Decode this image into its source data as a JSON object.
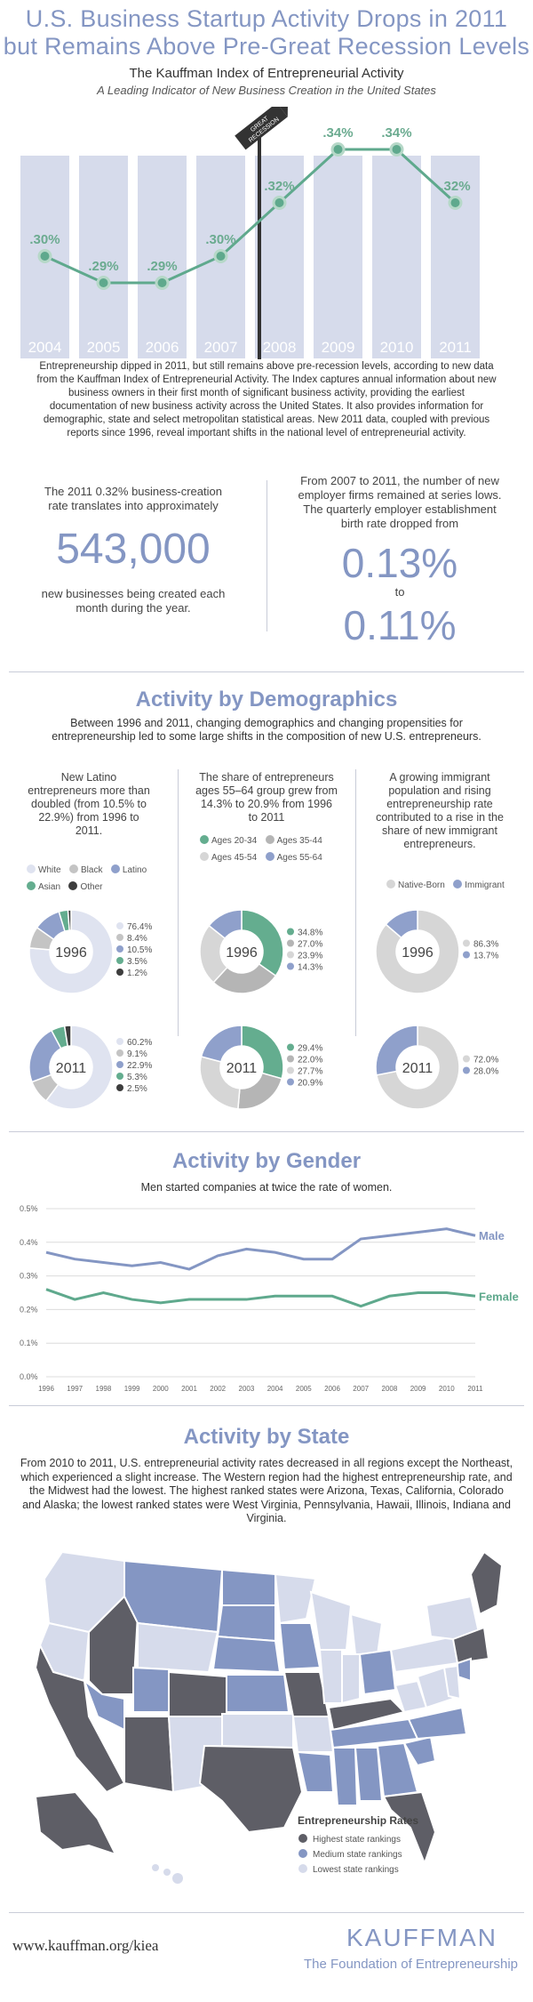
{
  "header": {
    "title_line1": "U.S. Business Startup Activity Drops in 2011",
    "title_line2": "but Remains Above Pre-Great Recession Levels",
    "subtitle": "The Kauffman Index of Entrepreneurial Activity",
    "tagline": "A Leading Indicator of New Business Creation in the United States"
  },
  "index_chart": {
    "recession_sign": [
      "GREAT",
      "RECESSION"
    ],
    "colors": {
      "column": "#d6dbeb",
      "line": "#5fa98d",
      "label": "#6bab90",
      "pole": "#333333"
    }
  },
  "chart_data": [
    {
      "type": "line",
      "x": [
        "2004",
        "2005",
        "2006",
        "2007",
        "2008",
        "2009",
        "2010",
        "2011"
      ],
      "series": [
        {
          "values": [
            0.3,
            0.29,
            0.29,
            0.3,
            0.32,
            0.34,
            0.34,
            0.32
          ],
          "labels": [
            ".30%",
            ".29%",
            ".29%",
            ".30%",
            ".32%",
            ".34%",
            ".34%",
            ".32%"
          ]
        }
      ]
    },
    {
      "type": "pie",
      "labels": [
        "White",
        "Black",
        "Latino",
        "Asian",
        "Other"
      ],
      "year": "1996",
      "values": [
        76.4,
        8.4,
        10.5,
        3.5,
        1.2
      ],
      "value_labels": [
        "76.4%",
        "8.4%",
        "10.5%",
        "3.5%",
        "1.2%"
      ]
    },
    {
      "type": "pie",
      "labels": [
        "White",
        "Black",
        "Latino",
        "Asian",
        "Other"
      ],
      "year": "2011",
      "values": [
        60.2,
        9.1,
        22.9,
        5.3,
        2.5
      ],
      "value_labels": [
        "60.2%",
        "9.1%",
        "22.9%",
        "5.3%",
        "2.5%"
      ]
    },
    {
      "type": "pie",
      "labels": [
        "Ages 20-34",
        "Ages 35-44",
        "Ages 45-54",
        "Ages 55-64"
      ],
      "year": "1996",
      "values": [
        34.8,
        27.0,
        23.9,
        14.3
      ],
      "value_labels": [
        "34.8%",
        "27.0%",
        "23.9%",
        "14.3%"
      ]
    },
    {
      "type": "pie",
      "labels": [
        "Ages 20-34",
        "Ages 35-44",
        "Ages 45-54",
        "Ages 55-64"
      ],
      "year": "2011",
      "values": [
        29.4,
        22.0,
        27.7,
        20.9
      ],
      "value_labels": [
        "29.4%",
        "22.0%",
        "27.7%",
        "20.9%"
      ]
    },
    {
      "type": "pie",
      "labels": [
        "Native-Born",
        "Immigrant"
      ],
      "year": "1996",
      "values": [
        86.3,
        13.7
      ],
      "value_labels": [
        "86.3%",
        "13.7%"
      ]
    },
    {
      "type": "pie",
      "labels": [
        "Native-Born",
        "Immigrant"
      ],
      "year": "2011",
      "values": [
        72.0,
        28.0
      ],
      "value_labels": [
        "72.0%",
        "28.0%"
      ]
    },
    {
      "type": "line",
      "x": [
        "1996",
        "1997",
        "1998",
        "1999",
        "2000",
        "2001",
        "2002",
        "2003",
        "2004",
        "2005",
        "2006",
        "2007",
        "2008",
        "2009",
        "2010",
        "2011"
      ],
      "ylim": [
        0,
        0.5
      ],
      "yticks": [
        "0.0%",
        "0.1%",
        "0.2%",
        "0.3%",
        "0.4%",
        "0.5%"
      ],
      "grid": true,
      "series": [
        {
          "name": "Male",
          "values": [
            0.37,
            0.35,
            0.34,
            0.33,
            0.34,
            0.32,
            0.36,
            0.38,
            0.37,
            0.35,
            0.35,
            0.41,
            0.42,
            0.43,
            0.44,
            0.42
          ]
        },
        {
          "name": "Female",
          "values": [
            0.26,
            0.23,
            0.25,
            0.23,
            0.22,
            0.23,
            0.23,
            0.23,
            0.24,
            0.24,
            0.24,
            0.21,
            0.24,
            0.25,
            0.25,
            0.24
          ]
        }
      ]
    }
  ],
  "intro": {
    "text": "Entrepreneurship dipped in 2011, but still remains above pre-recession levels, according to new data from the Kauffman Index of Entrepreneurial Activity. The Index captures annual information about new business owners in their first month of significant business activity, providing the earliest documentation of new business activity across the United States. It also provides information for demographic, state and select metropolitan statistical areas. New 2011 data, coupled with previous reports since 1996, reveal important shifts in the national level of entrepreneurial activity."
  },
  "stats": {
    "left_top": "The 2011 0.32% business-creation rate translates into approximately",
    "left_big": "543,000",
    "left_bottom": "new businesses being created each month during the year.",
    "right_top": "From 2007 to 2011, the number of new employer firms remained at series lows. The quarterly employer establishment birth rate dropped from",
    "right_from": "0.13%",
    "right_to_word": "to",
    "right_to": "0.11%"
  },
  "demographics": {
    "heading": "Activity by Demographics",
    "intro": "Between 1996 and 2011, changing demographics and changing propensities for entrepreneurship led to some large shifts in the composition of new U.S. entrepreneurs.",
    "col1_desc": "New Latino entrepreneurs more than doubled (from 10.5% to 22.9%) from 1996 to 2011.",
    "col2_desc": "The share of entrepreneurs ages 55–64 group grew from 14.3% to 20.9% from 1996 to 2011",
    "col3_desc": "A growing immigrant population and rising entrepreneurship rate contributed to a rise in the share of new immigrant entrepreneurs.",
    "colors": {
      "white": "#dfe3f0",
      "black": "#c4c4c4",
      "latino": "#8fa0cb",
      "asian": "#64ad8f",
      "other": "#3d3d3d",
      "a2034": "#64ad8f",
      "a3544": "#b5b5b5",
      "a4554": "#d6d6d6",
      "a5564": "#8fa0cb",
      "native": "#d6d6d6",
      "immigrant": "#8fa0cb"
    }
  },
  "gender": {
    "heading": "Activity by Gender",
    "subtitle": "Men started companies at twice the rate of women.",
    "colors": {
      "male": "#8496c3",
      "female": "#5fa98d",
      "grid": "#dcdcdc"
    }
  },
  "state": {
    "heading": "Activity by State",
    "text": "From 2010 to 2011, U.S. entrepreneurial activity rates decreased in all regions except the Northeast, which experienced a slight increase. The Western region had the highest entrepreneurship rate, and the Midwest had the lowest. The highest ranked states were Arizona, Texas, California, Colorado and Alaska; the lowest ranked states were West Virginia, Pennsylvania, Hawaii, Illinois, Indiana and Virginia.",
    "legend_title": "Entrepreneurship Rates",
    "legend": [
      "Highest state rankings",
      "Medium state rankings",
      "Lowest state rankings"
    ],
    "colors": {
      "high": "#5e5e66",
      "medium": "#8496c3",
      "low": "#d6dbeb",
      "border": "#ffffff"
    }
  },
  "footer": {
    "url": "www.kauffman.org/kiea",
    "brand": "KAUFFMAN",
    "brand_sub": "The Foundation of Entrepreneurship"
  }
}
